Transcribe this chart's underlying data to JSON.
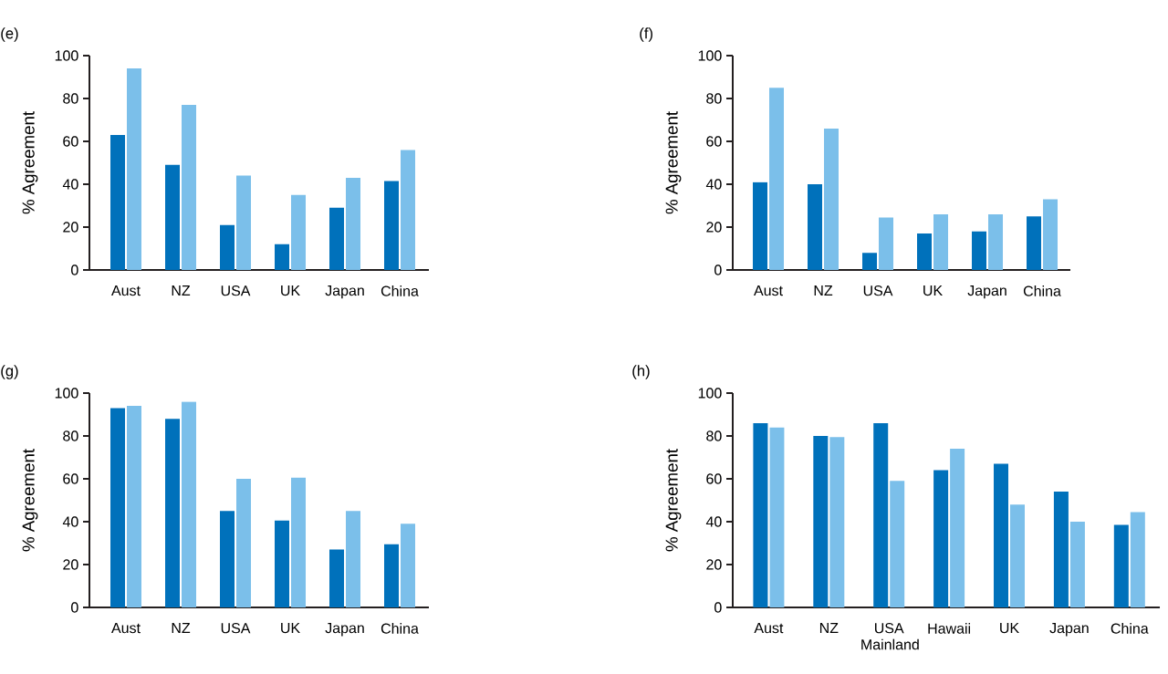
{
  "chart_data": [
    {
      "type": "bar",
      "title": "(e)",
      "ylabel": "% Agreement",
      "categories": [
        "Aust",
        "NZ",
        "USA",
        "UK",
        "Japan",
        "China"
      ],
      "series": [
        {
          "color": "#0071bb",
          "values": [
            63,
            49,
            21,
            12,
            29,
            41.5
          ]
        },
        {
          "color": "#7bbfea",
          "values": [
            94,
            77,
            44,
            35,
            43,
            56
          ]
        }
      ],
      "ylim": [
        0,
        100
      ],
      "yticks": [
        0,
        20,
        40,
        60,
        80,
        100
      ]
    },
    {
      "type": "bar",
      "title": "(f)",
      "ylabel": "% Agreement",
      "categories": [
        "Aust",
        "NZ",
        "USA",
        "UK",
        "Japan",
        "China"
      ],
      "series": [
        {
          "color": "#0071bb",
          "values": [
            41,
            40,
            8,
            17,
            18,
            25
          ]
        },
        {
          "color": "#7bbfea",
          "values": [
            85,
            66,
            24.5,
            26,
            26,
            33
          ]
        }
      ],
      "ylim": [
        0,
        100
      ],
      "yticks": [
        0,
        20,
        40,
        60,
        80,
        100
      ]
    },
    {
      "type": "bar",
      "title": "(g)",
      "ylabel": "% Agreement",
      "categories": [
        "Aust",
        "NZ",
        "USA",
        "UK",
        "Japan",
        "China"
      ],
      "series": [
        {
          "color": "#0071bb",
          "values": [
            93,
            88,
            45,
            40.5,
            27,
            29.5
          ]
        },
        {
          "color": "#7bbfea",
          "values": [
            94,
            96,
            60,
            60.5,
            45,
            39
          ]
        }
      ],
      "ylim": [
        0,
        100
      ],
      "yticks": [
        0,
        20,
        40,
        60,
        80,
        100
      ]
    },
    {
      "type": "bar",
      "title": "(h)",
      "ylabel": "% Agreement",
      "categories": [
        "Aust",
        "NZ",
        "USA Mainland",
        "Hawaii",
        "UK",
        "Japan",
        "China"
      ],
      "series": [
        {
          "color": "#0071bb",
          "values": [
            86,
            80,
            86,
            64,
            67,
            54,
            38.5
          ]
        },
        {
          "color": "#7bbfea",
          "values": [
            84,
            79.5,
            59,
            74,
            48,
            40,
            44.5
          ]
        }
      ],
      "ylim": [
        0,
        100
      ],
      "yticks": [
        0,
        20,
        40,
        60,
        80,
        100
      ]
    }
  ]
}
